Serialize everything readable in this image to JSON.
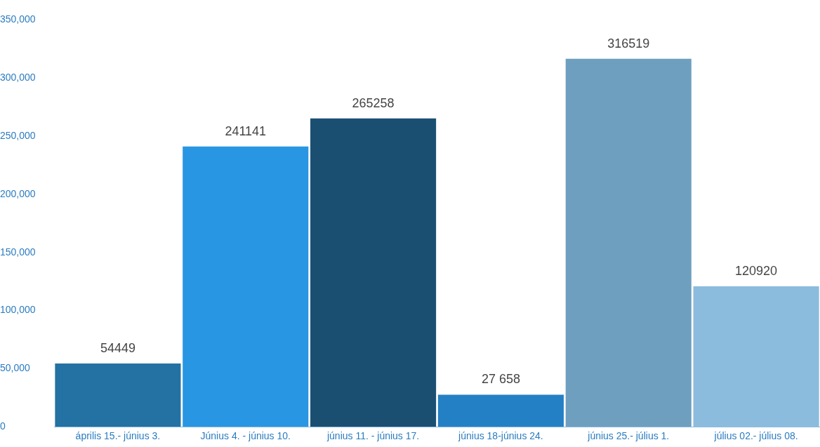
{
  "chart_data": {
    "type": "bar",
    "categories": [
      "április 15.- június 3.",
      "Június 4. - június 10.",
      "június 11. - június 17.",
      "június 18-június 24.",
      "június 25.- július 1.",
      "július 02.- július 08."
    ],
    "values": [
      54449,
      241141,
      265258,
      27658,
      316519,
      120920
    ],
    "value_labels": [
      "54449",
      "241141",
      "265258",
      "27 658",
      "316519",
      "120920"
    ],
    "colors": [
      "#2471a3",
      "#2896e3",
      "#1a4f72",
      "#2480c4",
      "#6f9fbf",
      "#8bbcdd"
    ],
    "ylim": [
      0,
      350000
    ],
    "yticks": [
      {
        "value": 0,
        "label": "0"
      },
      {
        "value": 50000,
        "label": "50,000"
      },
      {
        "value": 100000,
        "label": "100,000"
      },
      {
        "value": 150000,
        "label": "150,000"
      },
      {
        "value": 200000,
        "label": "200,000"
      },
      {
        "value": 250000,
        "label": "250,000"
      },
      {
        "value": 300000,
        "label": "300,000"
      },
      {
        "value": 350000,
        "label": "350,000"
      }
    ],
    "grid": false,
    "legend": false
  }
}
